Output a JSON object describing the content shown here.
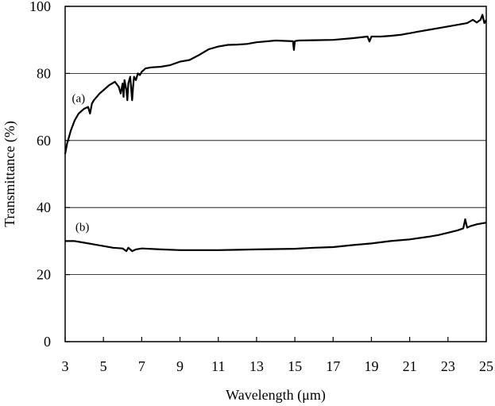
{
  "chart_data": {
    "type": "line",
    "xlabel": "Wavelength (μm)",
    "ylabel": "Transmittance (%)",
    "xlim": [
      3,
      25
    ],
    "ylim": [
      0,
      100
    ],
    "xticks": [
      3,
      5,
      7,
      9,
      11,
      13,
      15,
      17,
      19,
      21,
      23,
      25
    ],
    "yticks": [
      0,
      20,
      40,
      60,
      80,
      100
    ],
    "grid": "horizontal",
    "series": [
      {
        "name": "(a)",
        "x": [
          3.0,
          3.1,
          3.3,
          3.5,
          3.7,
          4.0,
          4.2,
          4.3,
          4.4,
          4.5,
          4.8,
          5.0,
          5.3,
          5.6,
          5.8,
          5.9,
          6.0,
          6.05,
          6.1,
          6.2,
          6.25,
          6.3,
          6.4,
          6.5,
          6.55,
          6.6,
          6.7,
          6.8,
          6.9,
          7.0,
          7.2,
          7.5,
          8.0,
          8.5,
          9.0,
          9.5,
          10.0,
          10.5,
          11.0,
          11.5,
          12.0,
          12.5,
          13.0,
          14.0,
          14.9,
          14.95,
          15.0,
          15.05,
          15.2,
          16.0,
          17.0,
          18.0,
          18.8,
          18.9,
          19.0,
          19.5,
          20.0,
          20.5,
          21.0,
          21.5,
          22.0,
          22.5,
          23.0,
          23.5,
          24.0,
          24.3,
          24.5,
          24.7,
          24.8,
          24.9,
          25.0
        ],
        "values": [
          56,
          59,
          63,
          66,
          68,
          69.5,
          70,
          68,
          71,
          72,
          74,
          75,
          76.5,
          77.5,
          76,
          74,
          77,
          73,
          78,
          75,
          72,
          77,
          79,
          72,
          76,
          79,
          78,
          80,
          79.5,
          80.5,
          81.5,
          81.8,
          82,
          82.5,
          83.5,
          84,
          85.5,
          87.2,
          88,
          88.5,
          88.6,
          88.8,
          89.3,
          89.8,
          89.6,
          87,
          89.6,
          89.7,
          89.8,
          89.9,
          90,
          90.5,
          91,
          89.5,
          91,
          91,
          91.2,
          91.5,
          92,
          92.5,
          93,
          93.5,
          94,
          94.5,
          95,
          96,
          95.2,
          96,
          97.5,
          95,
          96
        ]
      },
      {
        "name": "(b)",
        "x": [
          3.0,
          3.5,
          4.0,
          4.5,
          5.0,
          5.5,
          6.0,
          6.2,
          6.3,
          6.5,
          6.7,
          7.0,
          8.0,
          9.0,
          10.0,
          11.0,
          12.0,
          13.0,
          14.0,
          15.0,
          16.0,
          17.0,
          18.0,
          19.0,
          20.0,
          21.0,
          22.0,
          22.5,
          23.0,
          23.5,
          23.8,
          23.9,
          24.0,
          24.2,
          24.5,
          25.0
        ],
        "values": [
          30,
          30,
          29.5,
          29,
          28.5,
          28,
          27.8,
          27,
          28,
          27,
          27.5,
          27.8,
          27.5,
          27.3,
          27.3,
          27.3,
          27.4,
          27.5,
          27.6,
          27.7,
          28,
          28.2,
          28.8,
          29.3,
          30,
          30.5,
          31.3,
          31.8,
          32.5,
          33.2,
          33.8,
          36.5,
          34,
          34.5,
          35,
          35.5
        ]
      }
    ],
    "annotations": [
      {
        "text": "(a)",
        "x": 3.7,
        "y": 71.5
      },
      {
        "text": "(b)",
        "x": 3.9,
        "y": 33
      }
    ]
  }
}
